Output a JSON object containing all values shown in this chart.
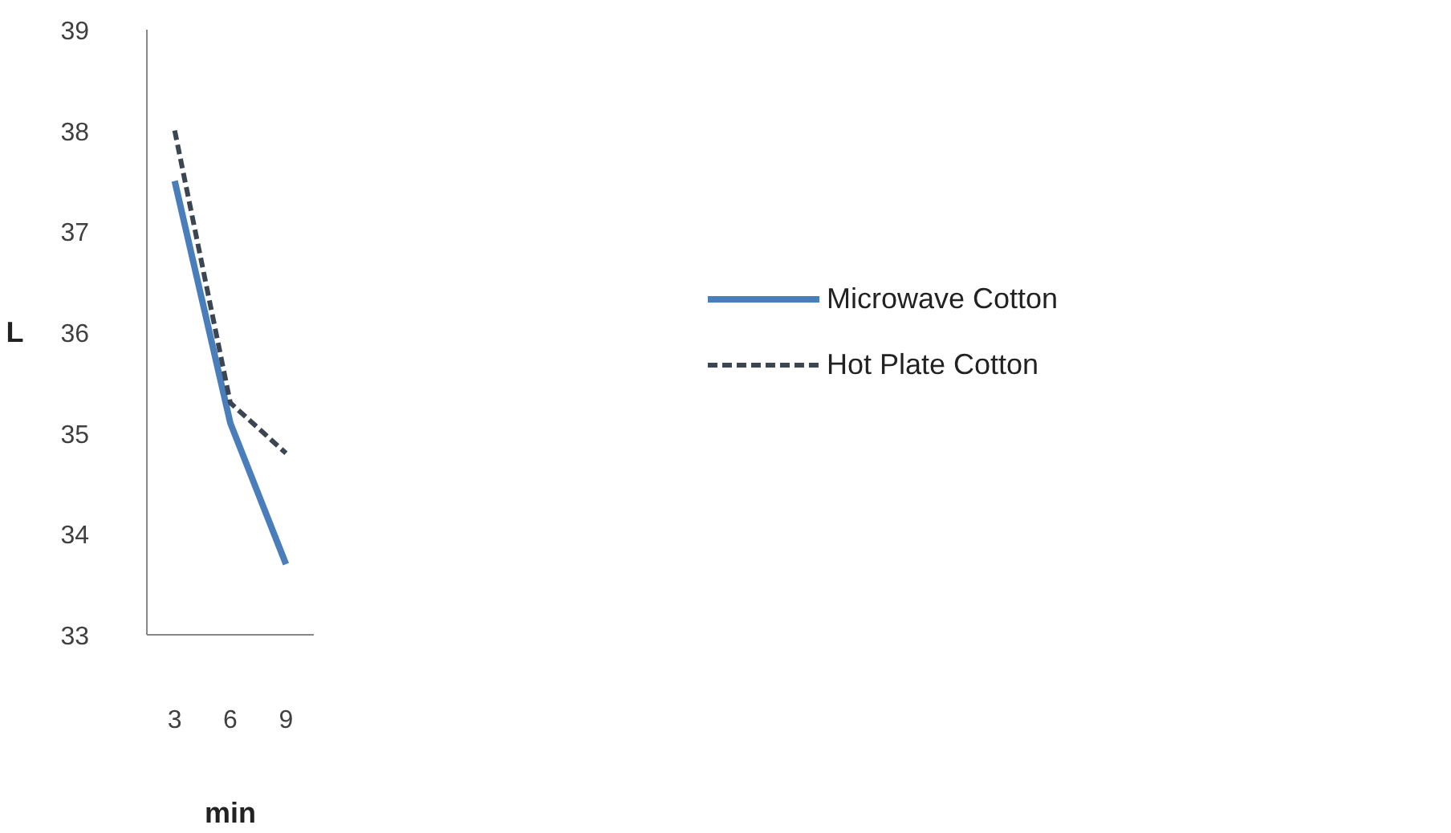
{
  "chart_data": {
    "type": "line",
    "xlabel": "min",
    "ylabel": "L",
    "categories": [
      "3",
      "6",
      "9"
    ],
    "ylim": [
      33,
      39
    ],
    "yticks": [
      33,
      34,
      35,
      36,
      37,
      38,
      39
    ],
    "legend": "right",
    "grid": false,
    "series": [
      {
        "name": "Microwave Cotton",
        "color": "#4a7ebb",
        "values": [
          37.5,
          35.1,
          33.7
        ],
        "line_style": "solid"
      },
      {
        "name": "Hot Plate Cotton",
        "color": "#3b4652",
        "values": [
          38.0,
          35.3,
          34.8
        ],
        "line_style": "dashed"
      }
    ]
  }
}
